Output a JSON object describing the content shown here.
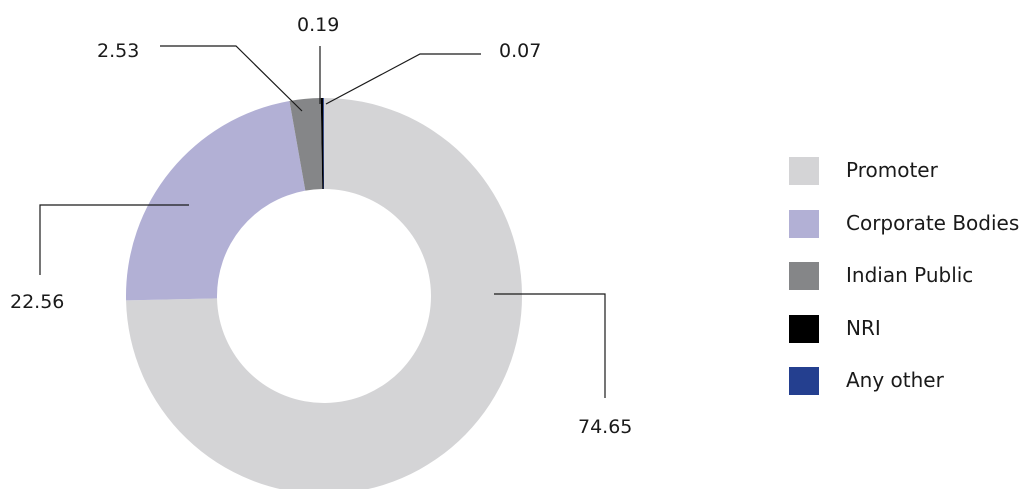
{
  "chart_data": {
    "type": "pie",
    "style": "donut",
    "title": "",
    "categories": [
      "Promoter",
      "Corporate Bodies",
      "Indian Public",
      "NRI",
      "Any other"
    ],
    "values": [
      74.65,
      22.56,
      2.53,
      0.19,
      0.07
    ],
    "value_labels": [
      "74.65",
      "22.56",
      "2.53",
      "0.19",
      "0.07"
    ],
    "colors": [
      "#d4d4d6",
      "#b2b0d5",
      "#858688",
      "#000000",
      "#243f8f"
    ],
    "legend_position": "right",
    "direction": "clockwise",
    "start": "top"
  }
}
